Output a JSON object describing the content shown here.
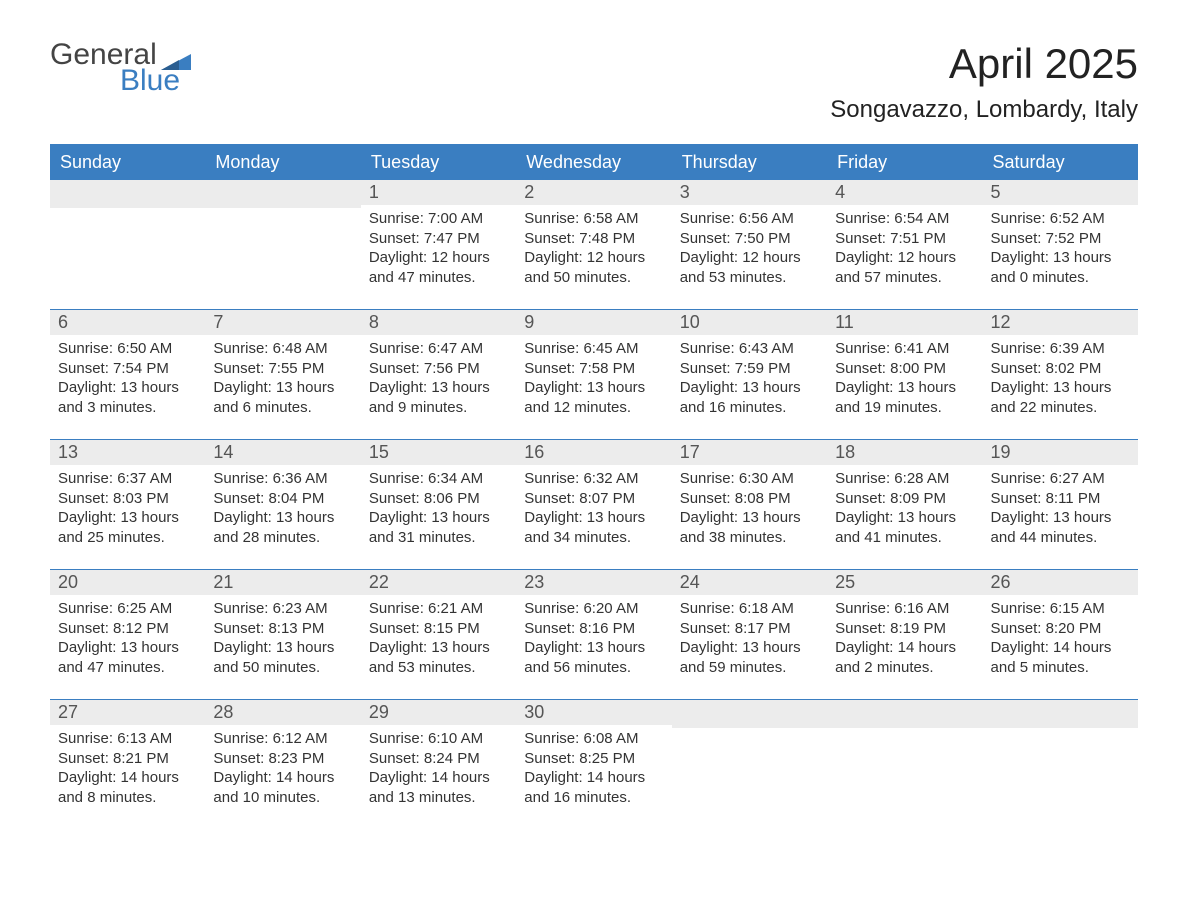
{
  "logo": {
    "text1": "General",
    "text2": "Blue"
  },
  "title": "April 2025",
  "subtitle": "Songavazzo, Lombardy, Italy",
  "colors": {
    "header_bg": "#3a7ec1",
    "header_text": "#ffffff",
    "daynum_bg": "#ececec",
    "border": "#3a7ec1",
    "body_text": "#333333",
    "logo_general": "#444444",
    "logo_blue": "#3a7ec1"
  },
  "days_of_week": [
    "Sunday",
    "Monday",
    "Tuesday",
    "Wednesday",
    "Thursday",
    "Friday",
    "Saturday"
  ],
  "weeks": [
    [
      null,
      null,
      {
        "d": "1",
        "sr": "7:00 AM",
        "ss": "7:47 PM",
        "dl": "12 hours and 47 minutes."
      },
      {
        "d": "2",
        "sr": "6:58 AM",
        "ss": "7:48 PM",
        "dl": "12 hours and 50 minutes."
      },
      {
        "d": "3",
        "sr": "6:56 AM",
        "ss": "7:50 PM",
        "dl": "12 hours and 53 minutes."
      },
      {
        "d": "4",
        "sr": "6:54 AM",
        "ss": "7:51 PM",
        "dl": "12 hours and 57 minutes."
      },
      {
        "d": "5",
        "sr": "6:52 AM",
        "ss": "7:52 PM",
        "dl": "13 hours and 0 minutes."
      }
    ],
    [
      {
        "d": "6",
        "sr": "6:50 AM",
        "ss": "7:54 PM",
        "dl": "13 hours and 3 minutes."
      },
      {
        "d": "7",
        "sr": "6:48 AM",
        "ss": "7:55 PM",
        "dl": "13 hours and 6 minutes."
      },
      {
        "d": "8",
        "sr": "6:47 AM",
        "ss": "7:56 PM",
        "dl": "13 hours and 9 minutes."
      },
      {
        "d": "9",
        "sr": "6:45 AM",
        "ss": "7:58 PM",
        "dl": "13 hours and 12 minutes."
      },
      {
        "d": "10",
        "sr": "6:43 AM",
        "ss": "7:59 PM",
        "dl": "13 hours and 16 minutes."
      },
      {
        "d": "11",
        "sr": "6:41 AM",
        "ss": "8:00 PM",
        "dl": "13 hours and 19 minutes."
      },
      {
        "d": "12",
        "sr": "6:39 AM",
        "ss": "8:02 PM",
        "dl": "13 hours and 22 minutes."
      }
    ],
    [
      {
        "d": "13",
        "sr": "6:37 AM",
        "ss": "8:03 PM",
        "dl": "13 hours and 25 minutes."
      },
      {
        "d": "14",
        "sr": "6:36 AM",
        "ss": "8:04 PM",
        "dl": "13 hours and 28 minutes."
      },
      {
        "d": "15",
        "sr": "6:34 AM",
        "ss": "8:06 PM",
        "dl": "13 hours and 31 minutes."
      },
      {
        "d": "16",
        "sr": "6:32 AM",
        "ss": "8:07 PM",
        "dl": "13 hours and 34 minutes."
      },
      {
        "d": "17",
        "sr": "6:30 AM",
        "ss": "8:08 PM",
        "dl": "13 hours and 38 minutes."
      },
      {
        "d": "18",
        "sr": "6:28 AM",
        "ss": "8:09 PM",
        "dl": "13 hours and 41 minutes."
      },
      {
        "d": "19",
        "sr": "6:27 AM",
        "ss": "8:11 PM",
        "dl": "13 hours and 44 minutes."
      }
    ],
    [
      {
        "d": "20",
        "sr": "6:25 AM",
        "ss": "8:12 PM",
        "dl": "13 hours and 47 minutes."
      },
      {
        "d": "21",
        "sr": "6:23 AM",
        "ss": "8:13 PM",
        "dl": "13 hours and 50 minutes."
      },
      {
        "d": "22",
        "sr": "6:21 AM",
        "ss": "8:15 PM",
        "dl": "13 hours and 53 minutes."
      },
      {
        "d": "23",
        "sr": "6:20 AM",
        "ss": "8:16 PM",
        "dl": "13 hours and 56 minutes."
      },
      {
        "d": "24",
        "sr": "6:18 AM",
        "ss": "8:17 PM",
        "dl": "13 hours and 59 minutes."
      },
      {
        "d": "25",
        "sr": "6:16 AM",
        "ss": "8:19 PM",
        "dl": "14 hours and 2 minutes."
      },
      {
        "d": "26",
        "sr": "6:15 AM",
        "ss": "8:20 PM",
        "dl": "14 hours and 5 minutes."
      }
    ],
    [
      {
        "d": "27",
        "sr": "6:13 AM",
        "ss": "8:21 PM",
        "dl": "14 hours and 8 minutes."
      },
      {
        "d": "28",
        "sr": "6:12 AM",
        "ss": "8:23 PM",
        "dl": "14 hours and 10 minutes."
      },
      {
        "d": "29",
        "sr": "6:10 AM",
        "ss": "8:24 PM",
        "dl": "14 hours and 13 minutes."
      },
      {
        "d": "30",
        "sr": "6:08 AM",
        "ss": "8:25 PM",
        "dl": "14 hours and 16 minutes."
      },
      null,
      null,
      null
    ]
  ],
  "labels": {
    "sunrise": "Sunrise: ",
    "sunset": "Sunset: ",
    "daylight": "Daylight: "
  }
}
